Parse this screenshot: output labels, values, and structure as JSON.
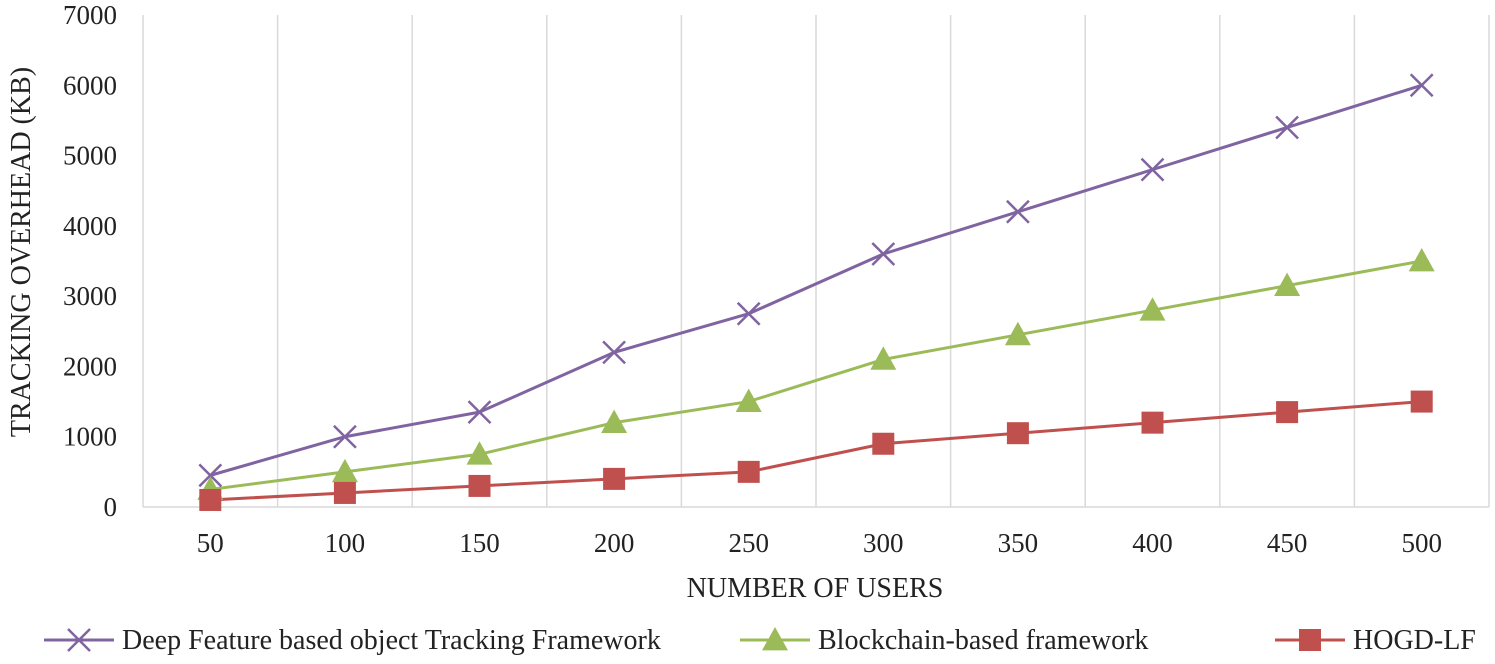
{
  "chart_data": {
    "type": "line",
    "title": "",
    "xlabel": "NUMBER OF USERS",
    "ylabel": "TRACKING OVERHEAD (KB)",
    "categories": [
      "50",
      "100",
      "150",
      "200",
      "250",
      "300",
      "350",
      "400",
      "450",
      "500"
    ],
    "ylim": [
      0,
      7000
    ],
    "yticks": [
      "0",
      "1000",
      "2000",
      "3000",
      "4000",
      "5000",
      "6000",
      "7000"
    ],
    "grid": "vertical",
    "legend_position": "bottom",
    "series": [
      {
        "name": "Deep Feature based object Tracking Framework",
        "color": "#8064a2",
        "marker": "x",
        "values": [
          450,
          1000,
          1350,
          2200,
          2750,
          3600,
          4200,
          4800,
          5400,
          6000
        ]
      },
      {
        "name": "Blockchain-based framework",
        "color": "#9bbb59",
        "marker": "triangle",
        "values": [
          250,
          500,
          750,
          1200,
          1500,
          2100,
          2450,
          2800,
          3150,
          3500
        ]
      },
      {
        "name": "HOGD-LF",
        "color": "#c0504d",
        "marker": "square",
        "values": [
          100,
          200,
          300,
          400,
          500,
          900,
          1050,
          1200,
          1350,
          1500
        ]
      }
    ]
  }
}
